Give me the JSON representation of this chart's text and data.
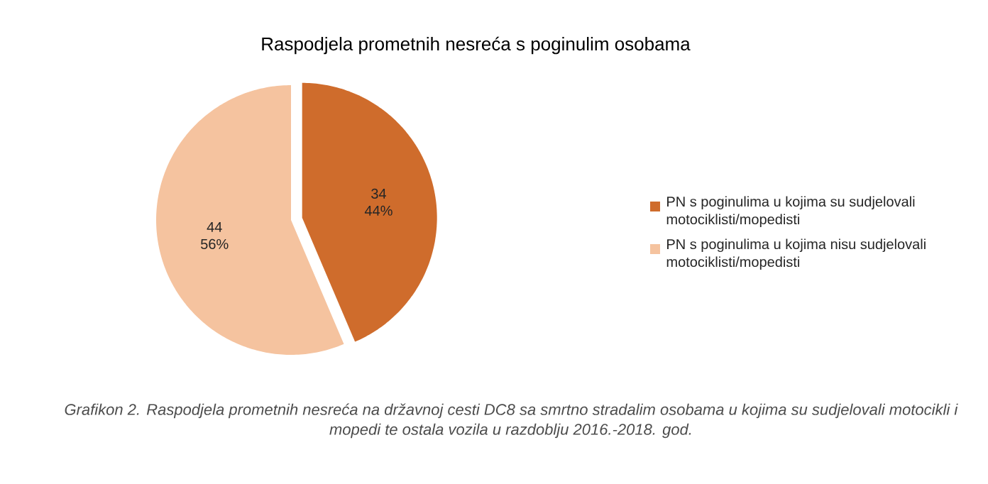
{
  "chart_data": {
    "type": "pie",
    "title": "Raspodjela prometnih nesreća s poginulim osobama",
    "categories": [
      "PN s poginulima u kojima su sudjelovali motociklisti/mopedisti",
      "PN s poginulima u kojima nisu sudjelovali motociklisti/mopedisti"
    ],
    "values": [
      34,
      44
    ],
    "colors": [
      "#cf6c2c",
      "#f5c39f"
    ],
    "value_labels": [
      "34 44%",
      "44 56%"
    ],
    "legend": "right",
    "annotations": [
      "Grafikon 2. Raspodjela prometnih nesreća na državnoj cesti DC8 sa smrtno stradalim osobama u kojima su sudjelovali motocikli i mopedi te ostala vozila u razdoblju 2016.-2018. god."
    ]
  }
}
